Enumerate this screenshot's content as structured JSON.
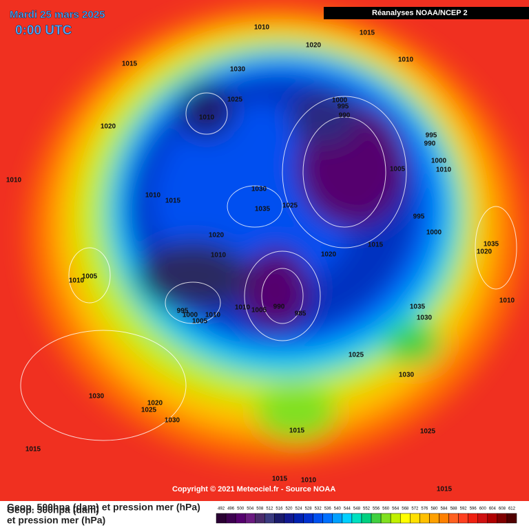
{
  "header": {
    "date": "Mardi 25 mars 2025",
    "time": "0:00 UTC",
    "source": "Réanalyses NOAA/NCEP 2"
  },
  "footer": {
    "copyright": "Copyright © 2021 Meteociel.fr - Source NOAA",
    "caption_line": "Geop. 500hpa (dam) et pression mer (hPa)",
    "caption_1": "Geop. 500hpa (dam)",
    "caption_2": "et pression mer (hPa)"
  },
  "isobar_labels": [
    "1010",
    "1015",
    "1020",
    "1010",
    "1015",
    "1030",
    "1025",
    "1000",
    "995",
    "1010",
    "990",
    "1020",
    "995",
    "990",
    "1000",
    "1005",
    "1010",
    "1010",
    "1030",
    "1010",
    "1015",
    "1035",
    "1025",
    "995",
    "1000",
    "1020",
    "1015",
    "1035",
    "1020",
    "1010",
    "1020",
    "1005",
    "1010",
    "1010",
    "1005",
    "990",
    "995",
    "1000",
    "1010",
    "1005",
    "985",
    "1035",
    "1010",
    "1030",
    "1025",
    "1030",
    "1030",
    "1020",
    "1025",
    "1030",
    "1015",
    "1025",
    "1015",
    "1015",
    "1010",
    "1015"
  ],
  "legend": {
    "labels": [
      "492",
      "496",
      "500",
      "504",
      "508",
      "512",
      "516",
      "520",
      "524",
      "528",
      "532",
      "536",
      "540",
      "544",
      "548",
      "552",
      "556",
      "560",
      "564",
      "568",
      "572",
      "576",
      "580",
      "584",
      "588",
      "592",
      "596",
      "600",
      "604",
      "608",
      "612"
    ],
    "colors": [
      "#2a0033",
      "#3d0050",
      "#55006e",
      "#6a1a80",
      "#4a2a6a",
      "#3a3a80",
      "#1a1a6a",
      "#101890",
      "#0020b0",
      "#0030d0",
      "#0050f0",
      "#0070ff",
      "#00a0ff",
      "#00d0ff",
      "#00e0c0",
      "#00d080",
      "#40d040",
      "#80e020",
      "#c0f000",
      "#ffff00",
      "#ffe000",
      "#ffc000",
      "#ffa000",
      "#ff8000",
      "#ff6020",
      "#ff4020",
      "#f02010",
      "#d01010",
      "#b00000",
      "#800000",
      "#500000"
    ]
  }
}
